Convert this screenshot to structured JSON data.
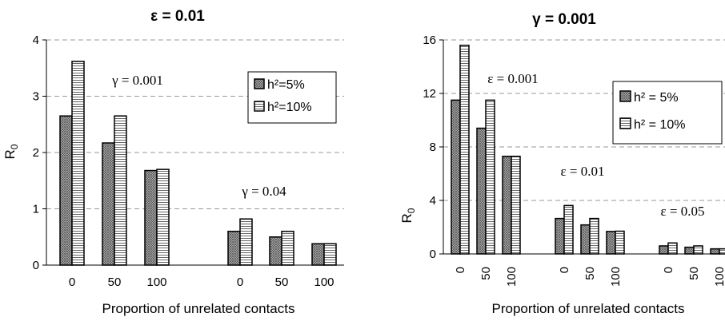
{
  "chart_data": [
    {
      "type": "bar",
      "title": "ε = 0.01",
      "xlabel": "Proportion of unrelated contacts",
      "ylabel": "R",
      "ylabel_sub": "0",
      "ylim": [
        0,
        4
      ],
      "yticks": [
        "0",
        "1",
        "2",
        "3",
        "4"
      ],
      "grid": true,
      "legend_position": "top-right",
      "series": [
        {
          "name": "h²=5%",
          "pattern": "crosshatch"
        },
        {
          "name": "h²=10%",
          "pattern": "horizontal-lines"
        }
      ],
      "groups": [
        {
          "annotation": "γ = 0.001",
          "categories": [
            "0",
            "50",
            "100"
          ],
          "values": [
            [
              2.65,
              3.62
            ],
            [
              2.17,
              2.65
            ],
            [
              1.68,
              1.7
            ]
          ]
        },
        {
          "annotation": "γ = 0.04",
          "categories": [
            "0",
            "50",
            "100"
          ],
          "values": [
            [
              0.6,
              0.82
            ],
            [
              0.5,
              0.6
            ],
            [
              0.38,
              0.38
            ]
          ]
        }
      ]
    },
    {
      "type": "bar",
      "title": "γ = 0.001",
      "xlabel": "Proportion of unrelated contacts",
      "ylabel": "R",
      "ylabel_sub": "0",
      "ylim": [
        0,
        16
      ],
      "yticks": [
        "0",
        "4",
        "8",
        "12",
        "16"
      ],
      "grid": true,
      "legend_position": "top-right",
      "series": [
        {
          "name": "h² = 5%",
          "pattern": "crosshatch"
        },
        {
          "name": "h² = 10%",
          "pattern": "horizontal-lines"
        }
      ],
      "groups": [
        {
          "annotation": "ε = 0.001",
          "categories": [
            "0",
            "50",
            "100"
          ],
          "values": [
            [
              11.5,
              15.6
            ],
            [
              9.4,
              11.5
            ],
            [
              7.3,
              7.3
            ]
          ]
        },
        {
          "annotation": "ε = 0.01",
          "categories": [
            "0",
            "50",
            "100"
          ],
          "values": [
            [
              2.65,
              3.62
            ],
            [
              2.17,
              2.65
            ],
            [
              1.68,
              1.7
            ]
          ]
        },
        {
          "annotation": "ε = 0.05",
          "categories": [
            "0",
            "50",
            "100"
          ],
          "values": [
            [
              0.6,
              0.82
            ],
            [
              0.5,
              0.6
            ],
            [
              0.38,
              0.38
            ]
          ]
        }
      ]
    }
  ],
  "colors": {
    "border": "#000000",
    "grid": "#999999",
    "hatch": "#555555",
    "background": "#ffffff"
  }
}
